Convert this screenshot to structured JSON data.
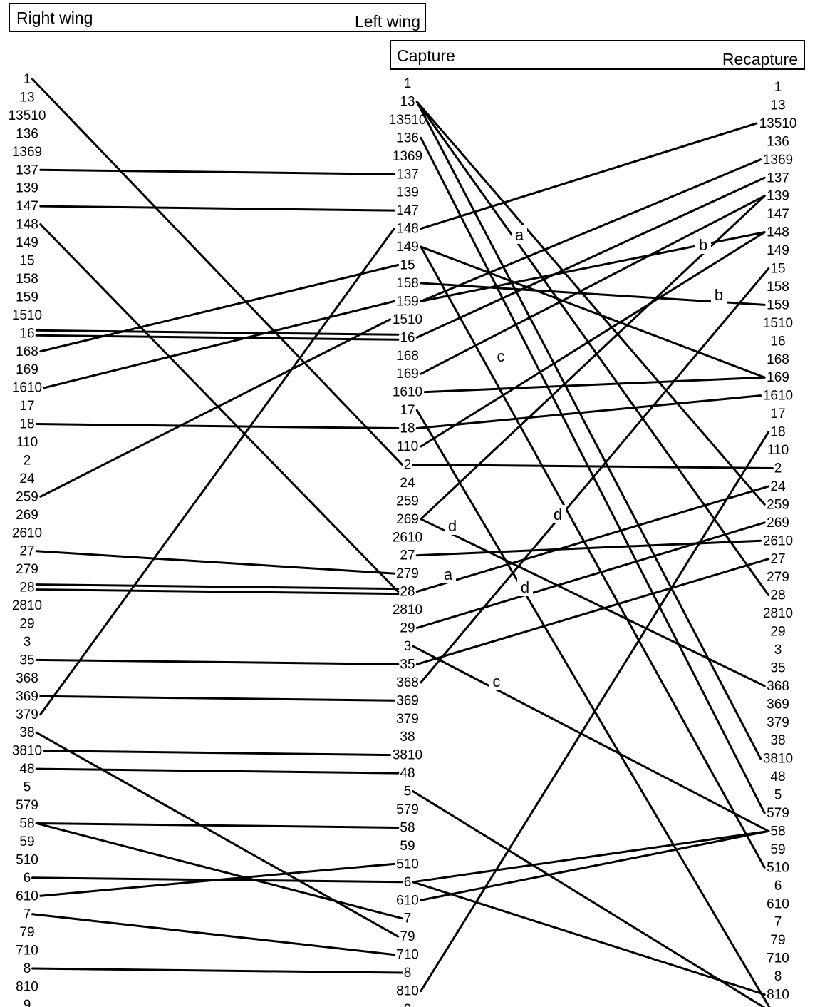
{
  "headers": {
    "wing": {
      "left": "Right wing",
      "right": "Left wing"
    },
    "capture": {
      "left": "Capture",
      "right": "Recapture"
    }
  },
  "labels": [
    "1",
    "13",
    "13510",
    "136",
    "1369",
    "137",
    "139",
    "147",
    "148",
    "149",
    "15",
    "158",
    "159",
    "1510",
    "16",
    "168",
    "169",
    "1610",
    "17",
    "18",
    "110",
    "2",
    "24",
    "259",
    "269",
    "2610",
    "27",
    "279",
    "28",
    "2810",
    "29",
    "3",
    "35",
    "368",
    "369",
    "379",
    "38",
    "3810",
    "48",
    "5",
    "579",
    "58",
    "59",
    "510",
    "6",
    "610",
    "7",
    "79",
    "710",
    "8",
    "810",
    "9"
  ],
  "links_right_wing_to_capture": [
    [
      "137",
      "137"
    ],
    [
      "147",
      "147"
    ],
    [
      "148",
      "28"
    ],
    [
      "1",
      "2"
    ],
    [
      "379",
      "148"
    ],
    [
      "168",
      "15"
    ],
    [
      "16",
      "16"
    ],
    [
      "16",
      "16"
    ],
    [
      "259",
      "1510"
    ],
    [
      "1610",
      "159"
    ],
    [
      "18",
      "18"
    ],
    [
      "27",
      "279"
    ],
    [
      "28",
      "28"
    ],
    [
      "28",
      "28"
    ],
    [
      "35",
      "35"
    ],
    [
      "369",
      "369"
    ],
    [
      "38",
      "79"
    ],
    [
      "3810",
      "3810"
    ],
    [
      "48",
      "48"
    ],
    [
      "58",
      "58"
    ],
    [
      "58",
      "7"
    ],
    [
      "6",
      "6"
    ],
    [
      "610",
      "510"
    ],
    [
      "7",
      "710"
    ],
    [
      "8",
      "8"
    ]
  ],
  "links_capture_to_recapture": [
    [
      "148",
      "13510"
    ],
    [
      "13",
      "259"
    ],
    [
      "13",
      "28"
    ],
    [
      "13",
      "3810"
    ],
    [
      "136",
      "579"
    ],
    [
      "149",
      "169"
    ],
    [
      "149",
      "510"
    ],
    [
      "17",
      "9"
    ],
    [
      "159",
      "1369"
    ],
    [
      "16",
      "137"
    ],
    [
      "169",
      "139"
    ],
    [
      "110",
      "148"
    ],
    [
      "1610",
      "169"
    ],
    [
      "18",
      "1610"
    ],
    [
      "2",
      "2"
    ],
    [
      "269",
      "139"
    ],
    [
      "269",
      "368"
    ],
    [
      "27",
      "2610"
    ],
    [
      "28",
      "24"
    ],
    [
      "29",
      "269"
    ],
    [
      "35",
      "27"
    ],
    [
      "368",
      "15"
    ],
    [
      "3",
      "58"
    ],
    [
      "5",
      "9"
    ],
    [
      "6",
      "58"
    ],
    [
      "6",
      "810"
    ],
    [
      "610",
      "58"
    ],
    [
      "810",
      "18"
    ],
    [
      "158",
      "159"
    ],
    [
      "159",
      "148"
    ]
  ],
  "link_marks": [
    "a",
    "a",
    "b",
    "b",
    "c",
    "c",
    "d",
    "d",
    "d"
  ]
}
